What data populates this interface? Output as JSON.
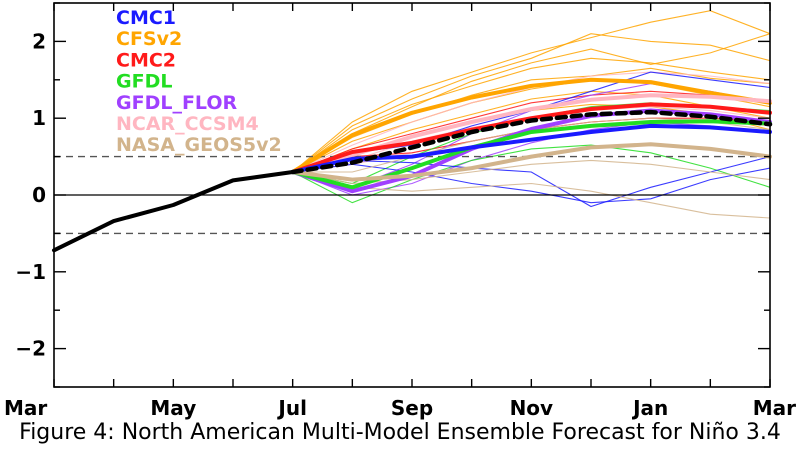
{
  "caption": "Figure 4: North American Multi-Model Ensemble Forecast for Niño 3.4",
  "chart_data": {
    "type": "line",
    "title": "",
    "xlabel": "",
    "ylabel": "",
    "x_tick_labels": [
      "Mar",
      "May",
      "Jul",
      "Sep",
      "Nov",
      "Jan",
      "Mar"
    ],
    "x_tick_index": [
      0,
      2,
      4,
      6,
      8,
      10,
      12
    ],
    "y_ticks": [
      -2,
      -1,
      0,
      1,
      2
    ],
    "y_tick_labels": [
      "−2",
      "−1",
      "0",
      "1",
      "2"
    ],
    "xlim": [
      0,
      12
    ],
    "ylim": [
      -2.5,
      2.5
    ],
    "reference_lines": [
      {
        "y": 0,
        "style": "solid"
      },
      {
        "y": 0.5,
        "style": "dashed"
      },
      {
        "y": -0.5,
        "style": "dashed"
      }
    ],
    "legend": [
      {
        "label": "CMC1",
        "color": "#1a1aff"
      },
      {
        "label": "CFSv2",
        "color": "#ffa500"
      },
      {
        "label": "CMC2",
        "color": "#ff1a1a"
      },
      {
        "label": "GFDL",
        "color": "#22dd22"
      },
      {
        "label": "GFDL_FLOR",
        "color": "#a040ff"
      },
      {
        "label": "NCAR_CCSM4",
        "color": "#ffb6c1"
      },
      {
        "label": "NASA_GEOS5v2",
        "color": "#d2b48c"
      }
    ],
    "series": [
      {
        "name": "observed",
        "color": "#000000",
        "style": "solid",
        "x": [
          0,
          1,
          2,
          3,
          4
        ],
        "values": [
          -0.72,
          -0.34,
          -0.13,
          0.19,
          0.3
        ]
      },
      {
        "name": "CFSv2",
        "color": "#ffa500",
        "style": "solid",
        "x": [
          4,
          5,
          6,
          7,
          8,
          9,
          10,
          11,
          12
        ],
        "values": [
          0.3,
          0.78,
          1.07,
          1.27,
          1.42,
          1.5,
          1.47,
          1.33,
          1.2
        ]
      },
      {
        "name": "NCAR_CCSM4",
        "color": "#ffb6c1",
        "style": "solid",
        "x": [
          4,
          5,
          6,
          7,
          8,
          9,
          10,
          11,
          12
        ],
        "values": [
          0.3,
          0.52,
          0.76,
          0.95,
          1.12,
          1.24,
          1.3,
          1.28,
          1.22
        ]
      },
      {
        "name": "CMC2",
        "color": "#ff1a1a",
        "style": "solid",
        "x": [
          4,
          5,
          6,
          7,
          8,
          9,
          10,
          11,
          12
        ],
        "values": [
          0.3,
          0.56,
          0.68,
          0.85,
          1.0,
          1.12,
          1.18,
          1.15,
          1.07
        ]
      },
      {
        "name": "GFDL_FLOR",
        "color": "#a040ff",
        "style": "solid",
        "x": [
          4,
          5,
          6,
          7,
          8,
          9,
          10,
          11,
          12
        ],
        "values": [
          0.3,
          0.05,
          0.25,
          0.6,
          0.86,
          1.03,
          1.1,
          1.05,
          0.95
        ]
      },
      {
        "name": "GFDL",
        "color": "#22dd22",
        "style": "solid",
        "x": [
          4,
          5,
          6,
          7,
          8,
          9,
          10,
          11,
          12
        ],
        "values": [
          0.3,
          0.1,
          0.35,
          0.62,
          0.82,
          0.9,
          0.95,
          0.96,
          0.93
        ]
      },
      {
        "name": "CMC1",
        "color": "#1a1aff",
        "style": "solid",
        "x": [
          4,
          5,
          6,
          7,
          8,
          9,
          10,
          11,
          12
        ],
        "values": [
          0.3,
          0.47,
          0.5,
          0.62,
          0.72,
          0.82,
          0.9,
          0.88,
          0.82
        ]
      },
      {
        "name": "NASA_GEOS5v2",
        "color": "#d2b48c",
        "style": "solid",
        "x": [
          4,
          5,
          6,
          7,
          8,
          9,
          10,
          11,
          12
        ],
        "values": [
          0.3,
          0.2,
          0.25,
          0.35,
          0.5,
          0.62,
          0.66,
          0.6,
          0.5
        ]
      },
      {
        "name": "ensemble mean",
        "color": "#000000",
        "style": "dashed",
        "x": [
          4,
          5,
          6,
          7,
          8,
          9,
          10,
          11,
          12
        ],
        "values": [
          0.3,
          0.42,
          0.62,
          0.82,
          0.97,
          1.05,
          1.08,
          1.02,
          0.92
        ]
      }
    ],
    "members": [
      {
        "model": "CFSv2",
        "color": "#ffa500",
        "x": [
          4,
          5,
          6,
          7,
          8,
          9,
          10,
          11,
          12
        ],
        "values": [
          0.3,
          0.95,
          1.35,
          1.6,
          1.85,
          2.05,
          2.25,
          2.4,
          2.1
        ]
      },
      {
        "model": "CFSv2",
        "color": "#ffa500",
        "x": [
          4,
          5,
          6,
          7,
          8,
          9,
          10,
          11,
          12
        ],
        "values": [
          0.3,
          0.9,
          1.25,
          1.55,
          1.78,
          2.1,
          2.0,
          1.95,
          1.75
        ]
      },
      {
        "model": "CFSv2",
        "color": "#ffa500",
        "x": [
          4,
          5,
          6,
          7,
          8,
          9,
          10,
          11,
          12
        ],
        "values": [
          0.3,
          0.85,
          1.18,
          1.42,
          1.65,
          1.78,
          1.72,
          1.6,
          1.5
        ]
      },
      {
        "model": "CFSv2",
        "color": "#ffa500",
        "x": [
          4,
          5,
          6,
          7,
          8,
          9,
          10,
          11,
          12
        ],
        "values": [
          0.3,
          0.75,
          1.05,
          1.3,
          1.5,
          1.55,
          1.65,
          1.52,
          1.45
        ]
      },
      {
        "model": "CFSv2",
        "color": "#ffa500",
        "x": [
          4,
          5,
          6,
          7,
          8,
          9,
          10,
          11,
          12
        ],
        "values": [
          0.3,
          0.7,
          0.95,
          1.2,
          1.38,
          1.5,
          1.45,
          1.3,
          1.15
        ]
      },
      {
        "model": "CFSv2",
        "color": "#ffa500",
        "x": [
          4,
          5,
          6,
          7,
          8,
          9,
          10,
          11,
          12
        ],
        "values": [
          0.3,
          0.6,
          0.85,
          1.05,
          1.25,
          1.35,
          1.3,
          1.15,
          1.0
        ]
      },
      {
        "model": "CFSv2",
        "color": "#ffa500",
        "x": [
          4,
          5,
          6,
          7,
          8,
          9,
          10,
          11,
          12
        ],
        "values": [
          0.3,
          0.55,
          0.75,
          0.95,
          1.1,
          1.18,
          1.15,
          1.05,
          0.85
        ]
      },
      {
        "model": "CFSv2",
        "color": "#ffa500",
        "x": [
          4,
          5,
          6,
          7,
          8,
          9,
          10,
          11,
          12
        ],
        "values": [
          0.3,
          0.8,
          1.15,
          1.48,
          1.72,
          1.9,
          1.7,
          1.85,
          2.1
        ]
      },
      {
        "model": "NCAR_CCSM4",
        "color": "#ffb6c1",
        "x": [
          4,
          5,
          6,
          7,
          8,
          9,
          10,
          11,
          12
        ],
        "values": [
          0.3,
          0.65,
          0.95,
          1.2,
          1.4,
          1.55,
          1.6,
          1.55,
          1.45
        ]
      },
      {
        "model": "NCAR_CCSM4",
        "color": "#ffb6c1",
        "x": [
          4,
          5,
          6,
          7,
          8,
          9,
          10,
          11,
          12
        ],
        "values": [
          0.3,
          0.45,
          0.7,
          0.88,
          1.0,
          1.1,
          1.15,
          1.1,
          1.0
        ]
      },
      {
        "model": "NCAR_CCSM4",
        "color": "#ffb6c1",
        "x": [
          4,
          5,
          6,
          7,
          8,
          9,
          10,
          11,
          12
        ],
        "values": [
          0.3,
          0.4,
          0.55,
          0.7,
          0.85,
          0.95,
          1.0,
          0.98,
          0.9
        ]
      },
      {
        "model": "CMC2",
        "color": "#ff1a1a",
        "x": [
          4,
          5,
          6,
          7,
          8,
          9,
          10,
          11,
          12
        ],
        "values": [
          0.3,
          0.6,
          0.8,
          1.0,
          1.2,
          1.3,
          1.35,
          1.3,
          1.2
        ]
      },
      {
        "model": "CMC2",
        "color": "#ff1a1a",
        "x": [
          4,
          5,
          6,
          7,
          8,
          9,
          10,
          11,
          12
        ],
        "values": [
          0.3,
          0.5,
          0.55,
          0.7,
          0.85,
          0.95,
          1.0,
          1.0,
          0.95
        ]
      },
      {
        "model": "GFDL_FLOR",
        "color": "#a040ff",
        "x": [
          4,
          5,
          6,
          7,
          8,
          9,
          10,
          11,
          12
        ],
        "values": [
          0.3,
          0.1,
          0.4,
          0.8,
          1.1,
          1.3,
          1.45,
          1.35,
          1.2
        ]
      },
      {
        "model": "GFDL_FLOR",
        "color": "#a040ff",
        "x": [
          4,
          5,
          6,
          7,
          8,
          9,
          10,
          11,
          12
        ],
        "values": [
          0.3,
          0.0,
          0.15,
          0.45,
          0.68,
          0.85,
          0.95,
          0.9,
          0.8
        ]
      },
      {
        "model": "GFDL",
        "color": "#22dd22",
        "x": [
          4,
          5,
          6,
          7,
          8,
          9,
          10,
          11,
          12
        ],
        "values": [
          0.3,
          -0.1,
          0.2,
          0.45,
          0.6,
          0.65,
          0.55,
          0.35,
          0.1
        ]
      },
      {
        "model": "GFDL",
        "color": "#22dd22",
        "x": [
          4,
          5,
          6,
          7,
          8,
          9,
          10,
          11,
          12
        ],
        "values": [
          0.3,
          0.15,
          0.5,
          0.8,
          1.0,
          1.15,
          1.2,
          1.15,
          1.1
        ]
      },
      {
        "model": "CMC1",
        "color": "#1a1aff",
        "x": [
          4,
          5,
          6,
          7,
          8,
          9,
          10,
          11,
          12
        ],
        "values": [
          0.3,
          0.55,
          0.65,
          0.9,
          1.1,
          1.35,
          1.6,
          1.5,
          1.4
        ]
      },
      {
        "model": "CMC1",
        "color": "#1a1aff",
        "x": [
          4,
          5,
          6,
          7,
          8,
          9,
          10,
          11,
          12
        ],
        "values": [
          0.3,
          0.4,
          0.3,
          0.15,
          0.05,
          -0.1,
          -0.05,
          0.2,
          0.35
        ]
      },
      {
        "model": "CMC1",
        "color": "#1a1aff",
        "x": [
          4,
          5,
          6,
          7,
          8,
          9,
          10,
          11,
          12
        ],
        "values": [
          0.3,
          0.45,
          0.42,
          0.35,
          0.3,
          -0.15,
          0.1,
          0.3,
          0.5
        ]
      },
      {
        "model": "NASA_GEOS5v2",
        "color": "#d2b48c",
        "x": [
          4,
          5,
          6,
          7,
          8,
          9,
          10,
          11,
          12
        ],
        "values": [
          0.3,
          0.1,
          0.05,
          0.1,
          0.15,
          0.05,
          -0.1,
          -0.25,
          -0.3
        ]
      },
      {
        "model": "NASA_GEOS5v2",
        "color": "#d2b48c",
        "x": [
          4,
          5,
          6,
          7,
          8,
          9,
          10,
          11,
          12
        ],
        "values": [
          0.3,
          0.3,
          0.5,
          0.7,
          0.85,
          0.95,
          1.0,
          0.95,
          0.85
        ]
      },
      {
        "model": "NASA_GEOS5v2",
        "color": "#d2b48c",
        "x": [
          4,
          5,
          6,
          7,
          8,
          9,
          10,
          11,
          12
        ],
        "values": [
          0.3,
          0.15,
          0.2,
          0.3,
          0.4,
          0.45,
          0.4,
          0.3,
          0.2
        ]
      }
    ]
  }
}
